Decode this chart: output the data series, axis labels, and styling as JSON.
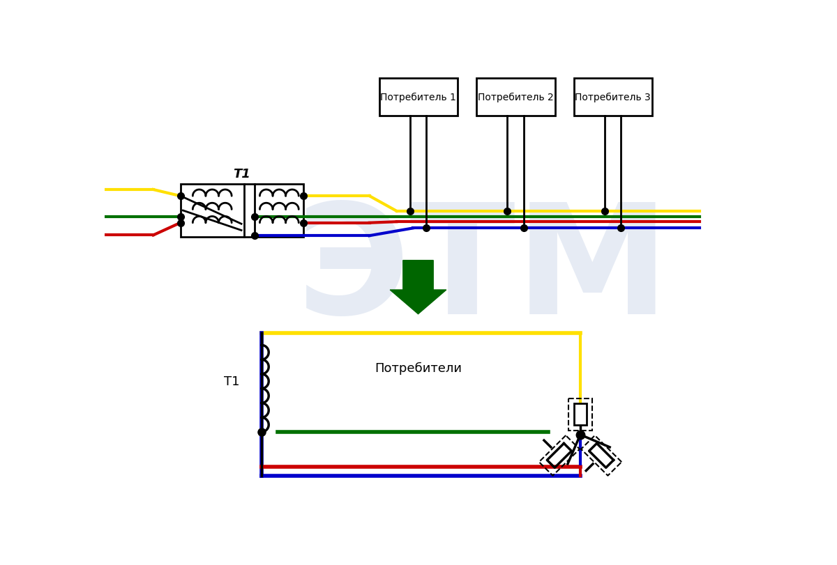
{
  "bg_color": "#ffffff",
  "watermark_color": "#c8d4e8",
  "lc_yellow": "#FFE000",
  "lc_green": "#007000",
  "lc_red": "#CC0000",
  "lc_blue": "#0000CC",
  "lc_black": "#000000",
  "lc_arrow": "#006600",
  "label_t1": "T1",
  "label_consumers": "Потребители",
  "label_c1": "Потребитель 1",
  "label_c2": "Потребитель 2",
  "label_c3": "Потребитель 3"
}
